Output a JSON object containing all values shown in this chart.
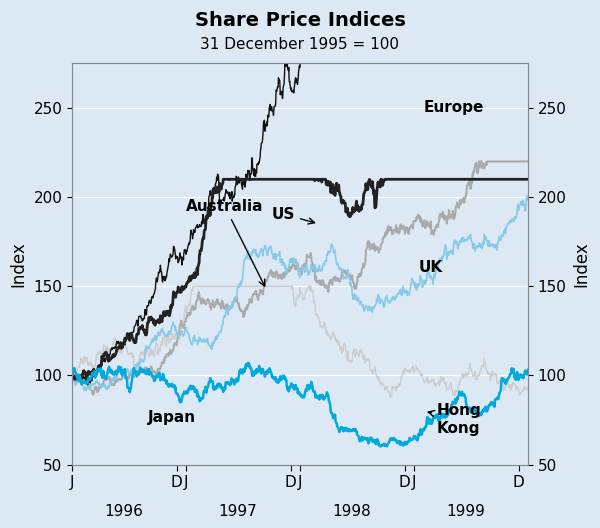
{
  "title": "Share Price Indices",
  "subtitle": "31 December 1995 = 100",
  "ylabel_left": "Index",
  "ylabel_right": "Index",
  "ylim": [
    50,
    275
  ],
  "yticks": [
    50,
    100,
    150,
    200,
    250
  ],
  "background_color": "#dce9f5",
  "plot_bg_color": "#dce9f5",
  "line_colors": {
    "Europe": "#111111",
    "US": "#88c8e8",
    "UK": "#aaaaaa",
    "Australia": "#222222",
    "Japan": "#00aadd",
    "HongKong": "#cccccc"
  },
  "line_widths": {
    "Europe": 1.0,
    "US": 1.2,
    "UK": 1.5,
    "Australia": 2.0,
    "Japan": 1.8,
    "HongKong": 1.0
  },
  "xtick_labels": [
    "J",
    "D",
    "J",
    "D",
    "J",
    "D",
    "J",
    "D"
  ],
  "year_labels": [
    "1996",
    "1997",
    "1998",
    "1999"
  ]
}
